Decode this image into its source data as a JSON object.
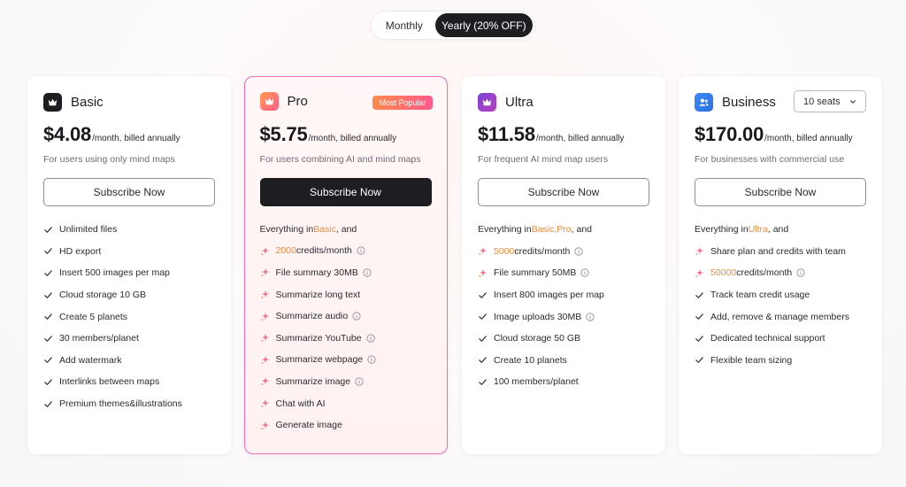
{
  "billing_toggle": {
    "monthly": "Monthly",
    "yearly": "Yearly (20% OFF)",
    "selected": "yearly"
  },
  "colors": {
    "accent_orange": "#f08a3c",
    "pro_border": "#ec6fb8",
    "dark_button": "#1d1d22"
  },
  "plans": [
    {
      "name": "Basic",
      "icon": "crown-icon",
      "price": "$4.08",
      "per": "/month, billed annually",
      "description": "For users using only mind maps",
      "button": "Subscribe Now",
      "features": [
        "Unlimited files",
        "HD export",
        "Insert 500 images per map",
        "Cloud storage 10 GB",
        "Create 5 planets",
        "30 members/planet",
        "Add watermark",
        "Interlinks between maps",
        "Premium themes&illustrations"
      ]
    },
    {
      "name": "Pro",
      "icon": "crown-icon",
      "badge": "Most Popular",
      "price": "$5.75",
      "per": "/month, billed annually",
      "description": "For users combining AI and mind maps",
      "button": "Subscribe Now",
      "everything_prefix": "Everything in ",
      "everything_hl": "Basic",
      "everything_suffix": ", and",
      "credits_value": "2000",
      "credits_label": " credits/month",
      "features": [
        "File summary 30MB",
        "Summarize long text",
        "Summarize audio",
        "Summarize YouTube",
        "Summarize webpage",
        "Summarize image",
        "Chat with AI",
        "Generate image"
      ]
    },
    {
      "name": "Ultra",
      "icon": "crown-icon",
      "price": "$11.58",
      "per": "/month, billed annually",
      "description": "For frequent AI mind map users",
      "button": "Subscribe Now",
      "everything_prefix": "Everything in ",
      "everything_hl": "Basic,Pro",
      "everything_suffix": ", and",
      "credits_value": "5000",
      "credits_label": " credits/month",
      "features": [
        "File summary 50MB",
        "Insert 800 images per map",
        "Image uploads 30MB",
        "Cloud storage 50 GB",
        "Create 10 planets",
        "100 members/planet"
      ]
    },
    {
      "name": "Business",
      "icon": "team-icon",
      "seats": "10 seats",
      "price": "$170.00",
      "per": "/month, billed annually",
      "description": "For businesses with commercial use",
      "button": "Subscribe Now",
      "everything_prefix": "Everything in ",
      "everything_hl": "Ultra",
      "everything_suffix": ", and",
      "share": "Share plan and credits with team",
      "credits_value": "50000",
      "credits_label": " credits/month",
      "features": [
        "Track team credit usage",
        "Add, remove & manage members",
        "Dedicated technical support",
        "Flexible team sizing"
      ]
    }
  ]
}
